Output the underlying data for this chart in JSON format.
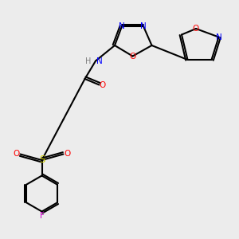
{
  "bg_color": "#ececec",
  "bond_color": "#000000",
  "bond_width": 1.5,
  "atom_colors": {
    "N": "#0000ff",
    "O": "#ff0000",
    "S": "#cccc00",
    "F": "#cc00cc",
    "H_N": "#808080",
    "C": "#000000"
  },
  "font_size": 7.5
}
